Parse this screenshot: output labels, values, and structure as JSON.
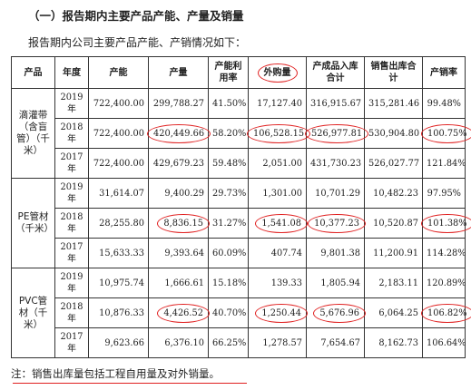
{
  "heading": "（一）报告期内主要产品产能、产量及销量",
  "intro": "报告期内公司主要产品产能、产销情况如下：",
  "columns": [
    "产品",
    "年度",
    "产能",
    "产量",
    "产能利用率",
    "外购量",
    "产成品入库合计",
    "销售出库合计",
    "产销率"
  ],
  "groups": [
    {
      "product": "滴灌带（含盲管）（千米）",
      "rows": [
        {
          "year": "2019年",
          "capacity": "722,400.00",
          "output": "299,788.27",
          "utilization": "41.50%",
          "purchased": "17,127.40",
          "stock_in": "316,915.67",
          "stock_out": "315,281.46",
          "sales_ratio": "99.48%"
        },
        {
          "year": "2018年",
          "capacity": "722,400.00",
          "output": "420,449.66",
          "utilization": "58.20%",
          "purchased": "106,528.15",
          "stock_in": "526,977.81",
          "stock_out": "530,904.80",
          "sales_ratio": "100.75%"
        },
        {
          "year": "2017年",
          "capacity": "722,400.00",
          "output": "429,679.23",
          "utilization": "59.48%",
          "purchased": "2,051.00",
          "stock_in": "431,730.23",
          "stock_out": "526,027.77",
          "sales_ratio": "121.84%"
        }
      ]
    },
    {
      "product": "PE管材（千米）",
      "rows": [
        {
          "year": "2019年",
          "capacity": "31,614.07",
          "output": "9,400.29",
          "utilization": "29.73%",
          "purchased": "1,301.00",
          "stock_in": "10,701.29",
          "stock_out": "10,482.23",
          "sales_ratio": "97.95%"
        },
        {
          "year": "2018年",
          "capacity": "28,255.80",
          "output": "8,836.15",
          "utilization": "31.27%",
          "purchased": "1,541.08",
          "stock_in": "10,377.23",
          "stock_out": "10,520.87",
          "sales_ratio": "101.38%"
        },
        {
          "year": "2017年",
          "capacity": "15,633.33",
          "output": "9,393.64",
          "utilization": "60.09%",
          "purchased": "407.74",
          "stock_in": "9,801.38",
          "stock_out": "11,200.91",
          "sales_ratio": "114.28%"
        }
      ]
    },
    {
      "product": "PVC管材（千米）",
      "rows": [
        {
          "year": "2019年",
          "capacity": "10,975.74",
          "output": "1,666.61",
          "utilization": "15.18%",
          "purchased": "139.33",
          "stock_in": "1,805.94",
          "stock_out": "2,183.11",
          "sales_ratio": "120.89%"
        },
        {
          "year": "2018年",
          "capacity": "10,876.33",
          "output": "4,426.52",
          "utilization": "40.70%",
          "purchased": "1,250.44",
          "stock_in": "5,676.96",
          "stock_out": "6,064.25",
          "sales_ratio": "106.82%"
        },
        {
          "year": "2017年",
          "capacity": "9,623.66",
          "output": "6,376.10",
          "utilization": "66.25%",
          "purchased": "1,278.57",
          "stock_in": "7,654.67",
          "stock_out": "8,162.73",
          "sales_ratio": "106.64%"
        }
      ]
    }
  ],
  "annotation_color": "#e02020",
  "note": "注：销售出库量包括工程自用量及对外销量。"
}
